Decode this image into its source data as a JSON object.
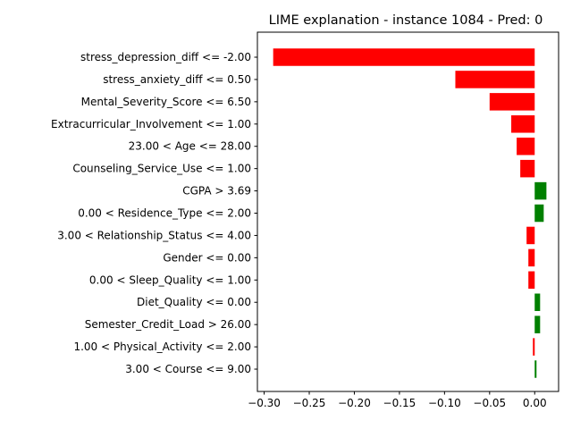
{
  "chart_data": {
    "type": "bar",
    "orientation": "horizontal",
    "title": "LIME explanation - instance 1084 - Pred: 0",
    "xlabel": "",
    "ylabel": "",
    "categories": [
      "stress_depression_diff <= -2.00",
      "stress_anxiety_diff <= 0.50",
      "Mental_Severity_Score <= 6.50",
      "Extracurricular_Involvement <= 1.00",
      "23.00 < Age <= 28.00",
      "Counseling_Service_Use <= 1.00",
      "CGPA > 3.69",
      "0.00 < Residence_Type <= 2.00",
      "3.00 < Relationship_Status <= 4.00",
      "Gender <= 0.00",
      "0.00 < Sleep_Quality <= 1.00",
      "Diet_Quality <= 0.00",
      "Semester_Credit_Load > 26.00",
      "1.00 < Physical_Activity <= 2.00",
      "3.00 < Course <= 9.00"
    ],
    "values": [
      -0.29,
      -0.088,
      -0.05,
      -0.026,
      -0.02,
      -0.016,
      0.013,
      0.01,
      -0.009,
      -0.007,
      -0.007,
      0.006,
      0.006,
      -0.002,
      0.002
    ],
    "xlim": [
      -0.3075,
      0.0265
    ],
    "xticks": [
      -0.3,
      -0.25,
      -0.2,
      -0.15,
      -0.1,
      -0.05,
      0.0
    ],
    "xtick_labels": [
      "−0.30",
      "−0.25",
      "−0.20",
      "−0.15",
      "−0.10",
      "−0.05",
      "0.00"
    ],
    "colors": {
      "positive": "#008000",
      "negative": "#ff0000"
    },
    "grid": false,
    "legend": "none"
  }
}
